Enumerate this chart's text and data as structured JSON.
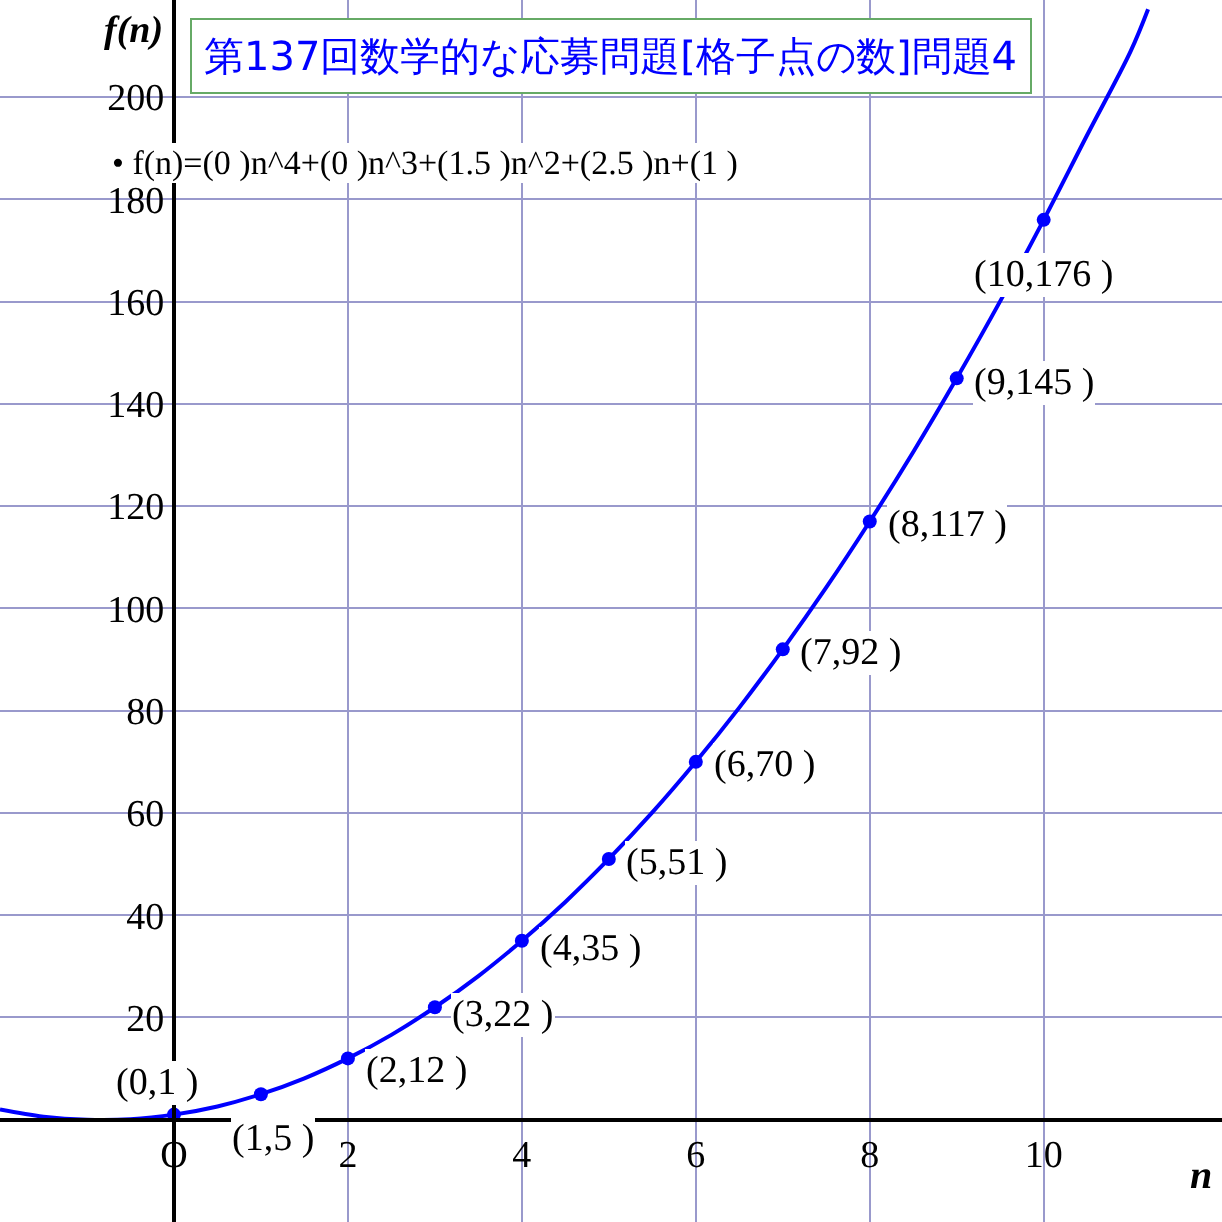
{
  "chart_data": {
    "type": "line",
    "title": "第137回数学的な応募問題[格子点の数]問題4",
    "xlabel": "n",
    "ylabel": "f(n)",
    "annotations": [
      "• f(n)=(0 )n^4+(0 )n^3+(1.5 )n^2+(2.5 )n+(1 )",
      {
        "text": "(0,1 )",
        "x": 0,
        "y": 1
      },
      {
        "text": "(1,5 )",
        "x": 1,
        "y": 5
      },
      {
        "text": "(2,12 )",
        "x": 2,
        "y": 12
      },
      {
        "text": "(3,22 )",
        "x": 3,
        "y": 22
      },
      {
        "text": "(4,35 )",
        "x": 4,
        "y": 35
      },
      {
        "text": "(5,51 )",
        "x": 5,
        "y": 51
      },
      {
        "text": "(6,70 )",
        "x": 6,
        "y": 70
      },
      {
        "text": "(7,92 )",
        "x": 7,
        "y": 92
      },
      {
        "text": "(8,117 )",
        "x": 8,
        "y": 117
      },
      {
        "text": "(9,145 )",
        "x": 9,
        "y": 145
      },
      {
        "text": "(10,176 )",
        "x": 10,
        "y": 176
      }
    ],
    "xlim": [
      -2,
      12.05
    ],
    "ylim": [
      -20,
      219
    ],
    "xticks": [
      {
        "value": 0,
        "label": "O"
      },
      2,
      4,
      6,
      8,
      10
    ],
    "yticks": [
      20,
      40,
      60,
      80,
      100,
      120,
      140,
      160,
      180,
      200
    ],
    "grid": true,
    "series": [
      {
        "color": "#0000ff",
        "marker": "none",
        "line_style": "solid",
        "x": [
          -2,
          -1.5,
          -1,
          -0.5,
          0,
          0.5,
          1,
          1.5,
          2,
          2.5,
          3,
          3.5,
          4,
          4.5,
          5,
          5.5,
          6,
          6.5,
          7,
          7.5,
          8,
          8.5,
          9,
          9.5,
          10,
          10.5,
          11,
          11.2
        ],
        "values": [
          2,
          0.6,
          0,
          0.1,
          1,
          2.6,
          5,
          8.1,
          12,
          16.6,
          22,
          28.1,
          35,
          42.6,
          51,
          60.1,
          70,
          80.6,
          92,
          104.1,
          117,
          130.6,
          145,
          160.1,
          176,
          192.6,
          209,
          217.2
        ]
      },
      {
        "type": "scatter",
        "color": "#0000ff",
        "marker": "circle",
        "x": [
          0,
          1,
          2,
          3,
          4,
          5,
          6,
          7,
          8,
          9,
          10
        ],
        "values": [
          1,
          5,
          12,
          22,
          35,
          51,
          70,
          92,
          117,
          145,
          176
        ]
      }
    ]
  }
}
